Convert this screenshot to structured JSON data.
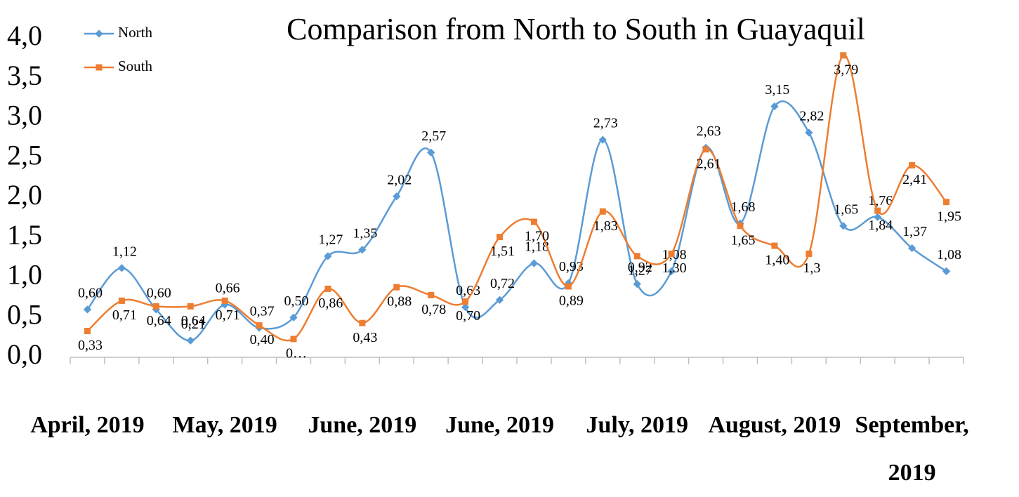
{
  "chart_data": {
    "type": "line",
    "title": "Comparison from North to South in Guayaquil",
    "categories": [
      "April, 2019",
      null,
      null,
      null,
      "May, 2019",
      null,
      null,
      null,
      "June, 2019",
      null,
      null,
      null,
      "June, 2019",
      null,
      null,
      null,
      "July, 2019",
      null,
      null,
      null,
      "August, 2019",
      null,
      null,
      null,
      "September, 2019",
      null
    ],
    "series": [
      {
        "name": "North",
        "color": "#5b9bd5",
        "values": [
          0.6,
          1.12,
          0.6,
          0.21,
          0.66,
          0.37,
          0.5,
          1.27,
          1.35,
          2.02,
          2.57,
          0.63,
          0.72,
          1.18,
          0.93,
          2.73,
          0.92,
          1.08,
          2.63,
          1.68,
          3.15,
          2.82,
          1.65,
          1.76,
          1.37,
          1.08
        ],
        "value_labels": [
          "0,60",
          "1,12",
          "0,60",
          "0,21",
          "0,66",
          "0,37",
          "0,50",
          "1,27",
          "1,35",
          "2,02",
          "2,57",
          "0,63",
          "0,72",
          "1,18",
          "0,93",
          "2,73",
          "0,92",
          "1,08",
          "2,63",
          "1,68",
          "3,15",
          "2,82",
          "1,65",
          "1,76",
          "1,37",
          "1,08"
        ]
      },
      {
        "name": "South",
        "color": "#ed7d31",
        "values": [
          0.33,
          0.71,
          0.64,
          0.64,
          0.71,
          0.4,
          0.23,
          0.86,
          0.43,
          0.88,
          0.78,
          0.7,
          1.51,
          1.7,
          0.89,
          1.83,
          1.27,
          1.3,
          2.61,
          1.65,
          1.4,
          1.3,
          3.79,
          1.84,
          2.41,
          1.95
        ],
        "value_labels": [
          "0,33",
          "0,71",
          "0,64",
          "0,64",
          "0,71",
          "0,40",
          "0…",
          "0,86",
          "0,43",
          "0,88",
          "0,78",
          "0,70",
          "1,51",
          "1,70",
          "0,89",
          "1,83",
          "1,27",
          "1,30",
          "2,61",
          "1,65",
          "1,40",
          "1,3",
          "3,79",
          "1,84",
          "2,41",
          "1,95"
        ]
      }
    ],
    "ylim": [
      0,
      4
    ],
    "yticks": [
      {
        "value": 0,
        "label": "0,0"
      },
      {
        "value": 0.5,
        "label": "0,5"
      },
      {
        "value": 1,
        "label": "1,0"
      },
      {
        "value": 1.5,
        "label": "1,5"
      },
      {
        "value": 2,
        "label": "2,0"
      },
      {
        "value": 2.5,
        "label": "2,5"
      },
      {
        "value": 3,
        "label": "3,0"
      },
      {
        "value": 3.5,
        "label": "3,5"
      },
      {
        "value": 4,
        "label": "4,0"
      }
    ],
    "grid": false,
    "legend": "top-left"
  }
}
